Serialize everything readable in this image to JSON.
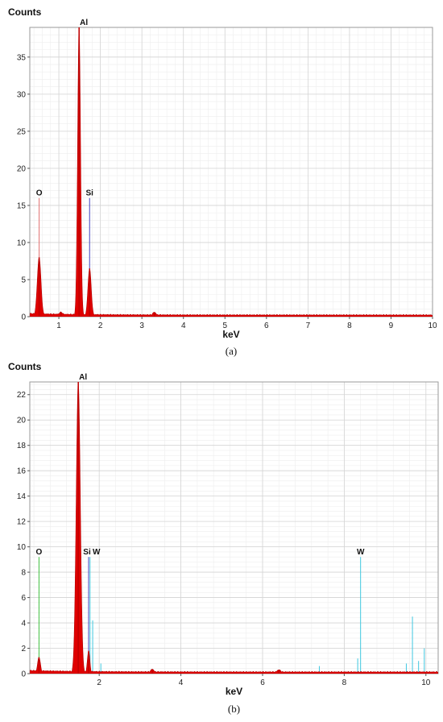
{
  "chart_data": [
    {
      "type": "line",
      "panel_label": "a",
      "ylabel": "Counts",
      "xlabel": "keV",
      "xlim": [
        0.3,
        10
      ],
      "ylim": [
        0,
        39
      ],
      "xticks": [
        1,
        2,
        3,
        4,
        5,
        6,
        7,
        8,
        9,
        10
      ],
      "yticks": [
        0,
        5,
        10,
        15,
        20,
        25,
        30,
        35
      ],
      "grid": true,
      "spectrum_color": "#e00000",
      "peaks": [
        {
          "x": 0.525,
          "y": 8
        },
        {
          "x": 1.05,
          "y": 0.6
        },
        {
          "x": 1.487,
          "y": 39
        },
        {
          "x": 1.74,
          "y": 6.5
        },
        {
          "x": 3.3,
          "y": 0.6
        }
      ],
      "markers": [
        {
          "label": "O",
          "x": 0.525,
          "y": 16,
          "color": "#e07070"
        },
        {
          "label": "Al",
          "x": 1.487,
          "y": 39,
          "color": "#c00000"
        },
        {
          "label": "Si",
          "x": 1.74,
          "y": 16,
          "color": "#4040c0"
        }
      ]
    },
    {
      "type": "line",
      "panel_label": "b",
      "ylabel": "Counts",
      "xlabel": "keV",
      "xlim": [
        0.3,
        10.3
      ],
      "ylim": [
        0,
        23
      ],
      "xticks": [
        2,
        4,
        6,
        8,
        10
      ],
      "yticks": [
        0,
        2,
        4,
        6,
        8,
        10,
        12,
        14,
        16,
        18,
        20,
        22
      ],
      "grid": true,
      "spectrum_color": "#e00000",
      "peaks": [
        {
          "x": 0.525,
          "y": 1.3
        },
        {
          "x": 1.487,
          "y": 23
        },
        {
          "x": 1.74,
          "y": 1.8
        },
        {
          "x": 3.3,
          "y": 0.35
        },
        {
          "x": 6.4,
          "y": 0.3
        }
      ],
      "markers": [
        {
          "label": "O",
          "x": 0.525,
          "y": 9.2,
          "color": "#40c040"
        },
        {
          "label": "Al",
          "x": 1.487,
          "y": 23,
          "color": "#c00000"
        },
        {
          "label": "Si",
          "x": 1.74,
          "y": 9.2,
          "color": "#4040c0"
        },
        {
          "label": "W",
          "x": 1.775,
          "y": 9.2,
          "color": "#40c8e0"
        },
        {
          "label": "W",
          "x": 8.4,
          "y": 9.2,
          "color": "#40c8e0"
        }
      ],
      "w_lines": [
        {
          "x": 1.38,
          "y": 1.0
        },
        {
          "x": 1.84,
          "y": 4.2
        },
        {
          "x": 2.04,
          "y": 0.8
        },
        {
          "x": 7.39,
          "y": 0.6
        },
        {
          "x": 8.33,
          "y": 1.2
        },
        {
          "x": 9.52,
          "y": 0.8
        },
        {
          "x": 9.67,
          "y": 4.5
        },
        {
          "x": 9.82,
          "y": 1.0
        },
        {
          "x": 9.96,
          "y": 2.0
        }
      ]
    }
  ]
}
